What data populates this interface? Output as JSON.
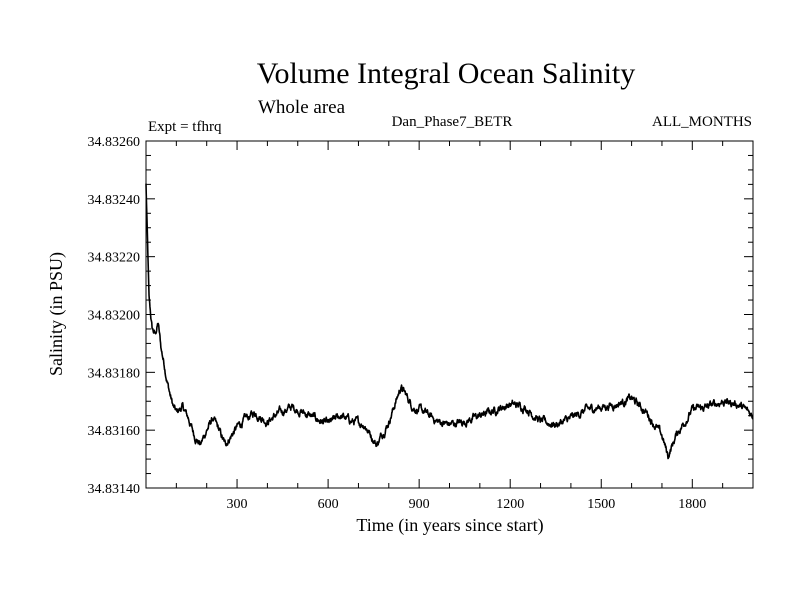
{
  "chart_data": {
    "type": "line",
    "title": "Volume Integral Ocean Salinity",
    "subtitle": "Whole area",
    "experiment": "Expt = tfhrq",
    "run_name": "Dan_Phase7_BETR",
    "season": "ALL_MONTHS",
    "xlabel": "Time (in years since start)",
    "ylabel": "Salinity (in PSU)",
    "xlim": [
      0,
      2000
    ],
    "ylim": [
      34.8314,
      34.8326
    ],
    "xticks": [
      300,
      600,
      900,
      1200,
      1500,
      1800
    ],
    "yticks": [
      34.8314,
      34.8316,
      34.8318,
      34.832,
      34.8322,
      34.8324,
      34.8326
    ],
    "ytick_labels": [
      "34.83140",
      "34.83160",
      "34.83180",
      "34.83200",
      "34.83220",
      "34.83240",
      "34.83260"
    ],
    "series": [
      {
        "name": "Salinity",
        "x": [
          0,
          10,
          20,
          30,
          40,
          50,
          60,
          70,
          80,
          90,
          100,
          120,
          140,
          160,
          180,
          200,
          220,
          240,
          260,
          280,
          300,
          330,
          360,
          400,
          440,
          480,
          520,
          560,
          600,
          640,
          680,
          720,
          760,
          800,
          840,
          880,
          920,
          960,
          1000,
          1050,
          1100,
          1150,
          1200,
          1250,
          1300,
          1350,
          1400,
          1450,
          1500,
          1550,
          1600,
          1650,
          1700,
          1720,
          1750,
          1800,
          1850,
          1900,
          1950,
          2000
        ],
        "values": [
          34.83245,
          34.83205,
          34.83195,
          34.83193,
          34.83197,
          34.83188,
          34.83183,
          34.83177,
          34.83172,
          34.83168,
          34.83166,
          34.83168,
          34.83164,
          34.83158,
          34.83155,
          34.8316,
          34.83164,
          34.8316,
          34.83155,
          34.83158,
          34.83161,
          34.83164,
          34.83166,
          34.83163,
          34.83166,
          34.83168,
          34.83166,
          34.83164,
          34.83162,
          34.83165,
          34.83163,
          34.83162,
          34.83155,
          34.83163,
          34.83175,
          34.83168,
          34.83166,
          34.83163,
          34.83162,
          34.83163,
          34.83165,
          34.83167,
          34.83169,
          34.83168,
          34.83163,
          34.83162,
          34.83164,
          34.83167,
          34.83168,
          34.83169,
          34.83171,
          34.83166,
          34.83158,
          34.83151,
          34.83159,
          34.83167,
          34.83168,
          34.8317,
          34.83169,
          34.83165
        ]
      }
    ],
    "grid": false,
    "legend": "none"
  },
  "colors": {
    "line": "#000000",
    "background": "#ffffff",
    "axes": "#000000"
  }
}
